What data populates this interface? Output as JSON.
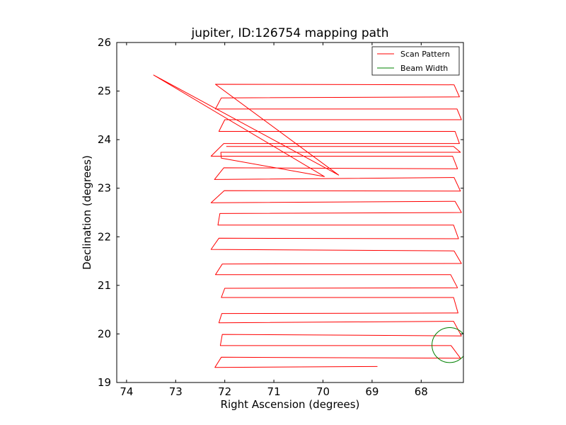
{
  "chart_data": {
    "type": "line",
    "title": "jupiter, ID:126754 mapping path",
    "xlabel": "Right Ascension (degrees)",
    "ylabel": "Declination (degrees)",
    "xlim": [
      74.2,
      67.14
    ],
    "ylim": [
      19,
      26
    ],
    "x_inverted": true,
    "xticks": [
      "74",
      "73",
      "72",
      "71",
      "70",
      "69",
      "68"
    ],
    "xtick_values": [
      74,
      73,
      72,
      71,
      70,
      69,
      68
    ],
    "yticks": [
      "19",
      "20",
      "21",
      "22",
      "23",
      "24",
      "25",
      "26"
    ],
    "ytick_values": [
      19,
      20,
      21,
      22,
      23,
      24,
      25,
      26
    ],
    "grid": false,
    "legend_position": "top-right",
    "series": [
      {
        "name": "Scan Pattern",
        "color": "#ff0000",
        "x": [
          68.89,
          72.2,
          72.07,
          67.2,
          67.39,
          72.09,
          72.05,
          67.18,
          67.34,
          72.12,
          72.06,
          67.25,
          67.34,
          72.07,
          72.0,
          67.26,
          67.4,
          72.19,
          72.05,
          67.18,
          67.33,
          72.28,
          72.12,
          67.24,
          67.34,
          72.14,
          72.1,
          67.18,
          67.31,
          72.28,
          72.01,
          67.2,
          67.33,
          72.21,
          72.02,
          67.26,
          67.36,
          72.28,
          72.02,
          67.22,
          67.31,
          72.12,
          72.0,
          67.18,
          67.27,
          72.19,
          72.07,
          67.22,
          67.33,
          72.19,
          69.68,
          73.45,
          69.97,
          72.07,
          72.08,
          67.2,
          67.34,
          71.97
        ],
        "y": [
          19.33,
          19.31,
          19.52,
          19.5,
          19.76,
          19.76,
          19.99,
          19.96,
          20.26,
          20.23,
          20.42,
          20.43,
          20.75,
          20.75,
          20.94,
          20.95,
          21.22,
          21.22,
          21.44,
          21.45,
          21.71,
          21.74,
          21.97,
          21.96,
          22.24,
          22.24,
          22.48,
          22.5,
          22.73,
          22.7,
          22.95,
          22.94,
          23.22,
          23.18,
          23.42,
          23.4,
          23.66,
          23.66,
          23.92,
          23.92,
          24.17,
          24.17,
          24.41,
          24.41,
          24.63,
          24.63,
          24.86,
          24.88,
          25.13,
          25.14,
          23.27,
          25.33,
          23.24,
          23.62,
          23.74,
          23.74,
          23.86,
          23.86
        ]
      },
      {
        "name": "Beam Width",
        "color": "#008000",
        "center": [
          67.42,
          19.77
        ],
        "radius": 0.36
      }
    ]
  }
}
